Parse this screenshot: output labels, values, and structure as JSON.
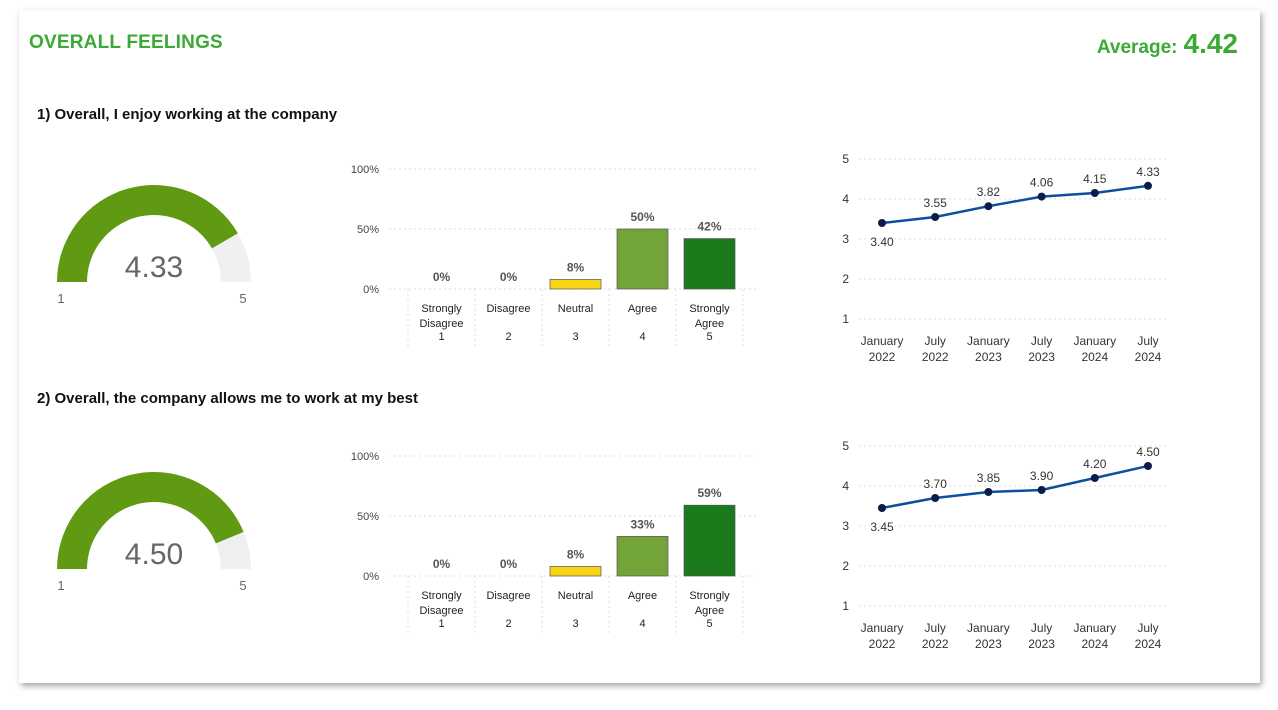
{
  "header": {
    "title": "OVERALL FEELINGS",
    "average_label": "Average:",
    "average_value": "4.42"
  },
  "colors": {
    "accent": "#3aaa35",
    "gauge_fill": "#5f9a12",
    "gauge_track": "#f0f0f0",
    "line": "#0c4f9e",
    "dot": "#0d1b4a"
  },
  "questions": [
    {
      "label": "1) Overall, I enjoy working at the company"
    },
    {
      "label": "2) Overall, the company allows me to work at my best"
    }
  ],
  "chart_data": [
    {
      "type": "gauge",
      "value": 4.33,
      "min": 1,
      "max": 5,
      "value_label": "4.33",
      "min_label": "1",
      "max_label": "5"
    },
    {
      "type": "bar",
      "categories": [
        {
          "name": "Strongly Disagree",
          "code": "1"
        },
        {
          "name": "Disagree",
          "code": "2"
        },
        {
          "name": "Neutral",
          "code": "3"
        },
        {
          "name": "Agree",
          "code": "4"
        },
        {
          "name": "Strongly Agree",
          "code": "5"
        }
      ],
      "values": [
        0,
        0,
        8,
        50,
        42
      ],
      "data_labels": [
        "0%",
        "0%",
        "8%",
        "50%",
        "42%"
      ],
      "bar_colors": [
        "#cccccc",
        "#cccccc",
        "#f7d516",
        "#72a43a",
        "#1b7a1b"
      ],
      "yticks": [
        "0%",
        "50%",
        "100%"
      ],
      "ylim": [
        0,
        100
      ],
      "grid": true
    },
    {
      "type": "line",
      "x": [
        {
          "month": "January",
          "year": "2022"
        },
        {
          "month": "July",
          "year": "2022"
        },
        {
          "month": "January",
          "year": "2023"
        },
        {
          "month": "July",
          "year": "2023"
        },
        {
          "month": "January",
          "year": "2024"
        },
        {
          "month": "July",
          "year": "2024"
        }
      ],
      "values": [
        3.4,
        3.55,
        3.82,
        4.06,
        4.15,
        4.33
      ],
      "data_labels": [
        "3.40",
        "3.55",
        "3.82",
        "4.06",
        "4.15",
        "4.33"
      ],
      "yticks": [
        "1",
        "2",
        "3",
        "4",
        "5"
      ],
      "ylim": [
        1,
        5
      ],
      "grid": true
    },
    {
      "type": "gauge",
      "value": 4.5,
      "min": 1,
      "max": 5,
      "value_label": "4.50",
      "min_label": "1",
      "max_label": "5"
    },
    {
      "type": "bar",
      "categories": [
        {
          "name": "Strongly Disagree",
          "code": "1"
        },
        {
          "name": "Disagree",
          "code": "2"
        },
        {
          "name": "Neutral",
          "code": "3"
        },
        {
          "name": "Agree",
          "code": "4"
        },
        {
          "name": "Strongly Agree",
          "code": "5"
        }
      ],
      "values": [
        0,
        0,
        8,
        33,
        59
      ],
      "data_labels": [
        "0%",
        "0%",
        "8%",
        "33%",
        "59%"
      ],
      "bar_colors": [
        "#cccccc",
        "#cccccc",
        "#f7d516",
        "#72a43a",
        "#1b7a1b"
      ],
      "yticks": [
        "0%",
        "50%",
        "100%"
      ],
      "ylim": [
        0,
        100
      ],
      "grid": true
    },
    {
      "type": "line",
      "x": [
        {
          "month": "January",
          "year": "2022"
        },
        {
          "month": "July",
          "year": "2022"
        },
        {
          "month": "January",
          "year": "2023"
        },
        {
          "month": "July",
          "year": "2023"
        },
        {
          "month": "January",
          "year": "2024"
        },
        {
          "month": "July",
          "year": "2024"
        }
      ],
      "values": [
        3.45,
        3.7,
        3.85,
        3.9,
        4.2,
        4.5
      ],
      "data_labels": [
        "3.45",
        "3.70",
        "3.85",
        "3.90",
        "4.20",
        "4.50"
      ],
      "yticks": [
        "1",
        "2",
        "3",
        "4",
        "5"
      ],
      "ylim": [
        1,
        5
      ],
      "grid": true
    }
  ]
}
